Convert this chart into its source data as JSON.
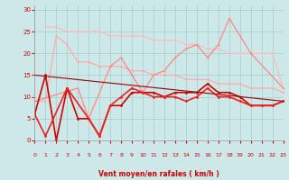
{
  "background_color": "#cce8e8",
  "grid_color": "#aacccc",
  "xlabel": "Vent moyen/en rafales ( km/h )",
  "xlabel_color": "#cc0000",
  "tick_color": "#cc0000",
  "ylim": [
    0,
    31
  ],
  "yticks": [
    0,
    5,
    10,
    15,
    20,
    25,
    30
  ],
  "xlim": [
    0,
    23
  ],
  "xticks": [
    0,
    1,
    2,
    3,
    4,
    5,
    6,
    7,
    8,
    9,
    10,
    11,
    12,
    13,
    14,
    15,
    16,
    17,
    18,
    19,
    20,
    21,
    22,
    23
  ],
  "lines": [
    {
      "x": [
        1,
        2,
        3,
        4,
        5,
        6,
        7,
        8,
        9,
        10,
        11,
        12,
        13,
        14,
        15,
        16,
        17,
        18,
        19,
        20,
        21,
        22,
        23
      ],
      "y": [
        26,
        26,
        25,
        25,
        25,
        25,
        24,
        24,
        24,
        24,
        23,
        23,
        23,
        22,
        22,
        21,
        21,
        20,
        20,
        20,
        20,
        20,
        12
      ],
      "color": "#ffbbbb",
      "lw": 0.9,
      "marker": "o",
      "ms": 1.5
    },
    {
      "x": [
        0,
        1,
        2,
        3,
        4,
        5,
        6,
        7,
        8,
        9,
        10,
        11,
        12,
        13,
        14,
        15,
        16,
        17,
        18,
        19,
        20,
        21,
        22,
        23
      ],
      "y": [
        9,
        9,
        24,
        22,
        18,
        18,
        17,
        17,
        17,
        16,
        16,
        15,
        15,
        15,
        14,
        14,
        14,
        13,
        13,
        13,
        12,
        12,
        12,
        11
      ],
      "color": "#ffaaaa",
      "lw": 0.9,
      "marker": "o",
      "ms": 1.5
    },
    {
      "x": [
        0,
        4,
        5,
        7,
        8,
        9,
        10,
        11,
        12,
        13,
        14,
        15,
        16,
        17,
        18,
        19,
        20,
        23
      ],
      "y": [
        9,
        12,
        5,
        17,
        19,
        15,
        11,
        15,
        16,
        19,
        21,
        22,
        19,
        22,
        28,
        24,
        20,
        12
      ],
      "color": "#ff8888",
      "lw": 0.9,
      "marker": "o",
      "ms": 1.5
    },
    {
      "x": [
        0,
        1,
        2,
        3,
        4,
        5,
        6,
        7,
        8,
        9,
        10,
        11,
        12,
        13,
        14,
        15,
        16,
        17,
        18,
        19,
        20,
        21,
        22,
        23
      ],
      "y": [
        6,
        15,
        0,
        12,
        5,
        5,
        1,
        8,
        8,
        11,
        11,
        11,
        10,
        11,
        11,
        11,
        13,
        11,
        11,
        10,
        8,
        8,
        8,
        9
      ],
      "color": "#cc0000",
      "lw": 1.2,
      "marker": "o",
      "ms": 2.0
    },
    {
      "x": [
        0,
        1,
        3,
        5,
        6,
        7,
        8,
        9,
        10,
        11,
        12,
        13,
        14,
        15,
        16,
        17,
        18,
        19,
        20,
        21,
        22,
        23
      ],
      "y": [
        6,
        1,
        12,
        5,
        1,
        8,
        10,
        12,
        11,
        10,
        10,
        10,
        9,
        10,
        12,
        10,
        10,
        9,
        8,
        8,
        8,
        9
      ],
      "color": "#ee2222",
      "lw": 1.2,
      "marker": "o",
      "ms": 2.0
    },
    {
      "x": [
        0,
        23
      ],
      "y": [
        15,
        9
      ],
      "color": "#990000",
      "lw": 0.8,
      "marker": null,
      "ms": 0
    }
  ],
  "wind_arrows": [
    "↗",
    "↘",
    "↙",
    "↙",
    "↙",
    "↘",
    "↗",
    "↗",
    "↘",
    "↙",
    "→",
    "↗",
    "↘",
    "↙",
    "→",
    "↗",
    "↗",
    "↘",
    "→",
    "↗",
    "↗",
    "↗",
    "↗",
    "↗"
  ]
}
